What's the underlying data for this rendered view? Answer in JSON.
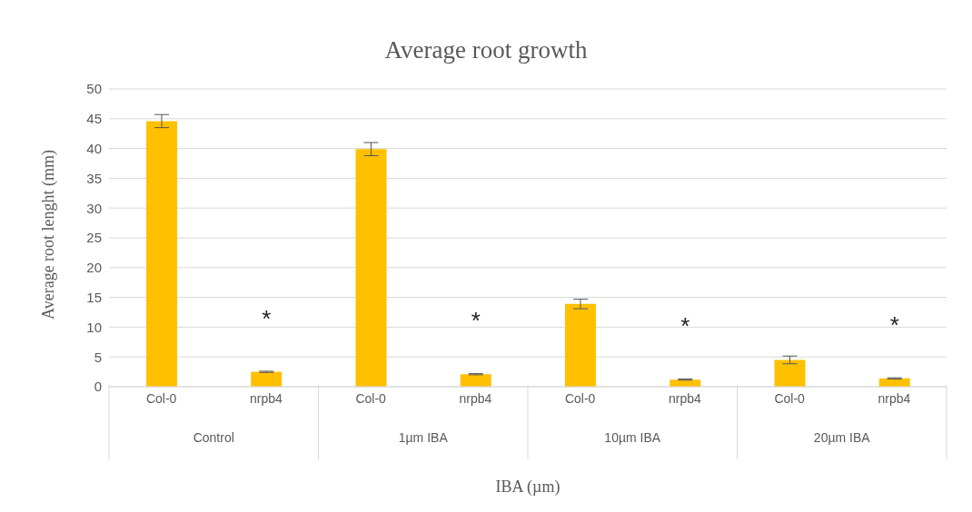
{
  "chart_data": {
    "type": "bar",
    "title": "Average root growth",
    "xlabel": "IBA (µm)",
    "ylabel": "Average root lenght (mm)",
    "categories": [
      "Col-0",
      "nrpb4",
      "Col-0",
      "nrpb4",
      "Col-0",
      "nrpb4",
      "Col-0",
      "nrpb4"
    ],
    "values": [
      44.6,
      2.5,
      39.9,
      2.1,
      13.9,
      1.2,
      4.5,
      1.4
    ],
    "errors": [
      1.1,
      0.1,
      1.1,
      0.1,
      0.8,
      0.1,
      0.65,
      0.1
    ],
    "value_labels": [
      null,
      "*",
      null,
      "*",
      null,
      "*",
      null,
      "*"
    ],
    "color": "#ffc000",
    "annotations": [
      "Control",
      "1µm IBA",
      "10µm IBA",
      "20µm IBA"
    ],
    "ylim": [
      0,
      50
    ],
    "yticks": [
      0,
      5,
      10,
      15,
      20,
      25,
      30,
      35,
      40,
      45,
      50
    ],
    "grid": "y"
  }
}
